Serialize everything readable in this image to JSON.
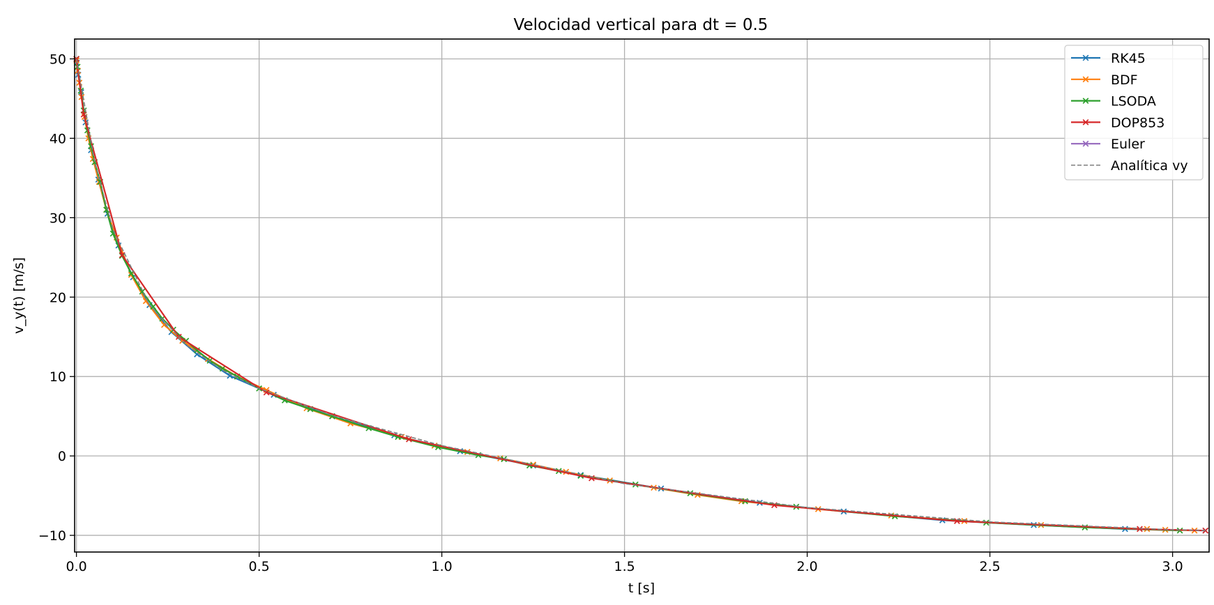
{
  "chart_data": {
    "type": "line",
    "title": "Velocidad vertical para dt = 0.5",
    "xlabel": "t [s]",
    "ylabel": "v_y(t) [m/s]",
    "xlim": [
      -0.005,
      3.1
    ],
    "ylim": [
      -12.1,
      52.5
    ],
    "xticks": [
      0.0,
      0.5,
      1.0,
      1.5,
      2.0,
      2.5,
      3.0
    ],
    "xtick_labels": [
      "0.0",
      "0.5",
      "1.0",
      "1.5",
      "2.0",
      "2.5",
      "3.0"
    ],
    "yticks": [
      -10,
      0,
      10,
      20,
      30,
      40,
      50
    ],
    "ytick_labels": [
      "−10",
      "0",
      "10",
      "20",
      "30",
      "40",
      "50"
    ],
    "grid": true,
    "legend_position": "upper-right",
    "series": [
      {
        "name": "RK45",
        "color": "#1f77b4",
        "marker": "x",
        "style": "solid",
        "x": [
          0.0,
          0.001,
          0.005,
          0.013,
          0.025,
          0.04,
          0.06,
          0.085,
          0.115,
          0.155,
          0.2,
          0.26,
          0.33,
          0.42,
          0.54,
          0.7,
          0.87,
          1.05,
          1.25,
          1.38,
          1.6,
          1.87,
          2.1,
          2.37,
          2.62,
          2.87,
          3.09
        ],
        "y": [
          50.0,
          49.5,
          48.0,
          45.8,
          42.0,
          38.5,
          34.8,
          30.5,
          26.5,
          22.5,
          19.0,
          15.6,
          12.8,
          10.1,
          7.7,
          5.0,
          2.6,
          0.6,
          -1.2,
          -2.4,
          -4.1,
          -5.9,
          -7.0,
          -8.1,
          -8.7,
          -9.2,
          -9.4
        ]
      },
      {
        "name": "BDF",
        "color": "#ff7f0e",
        "marker": "x",
        "style": "solid",
        "x": [
          0.0,
          0.004,
          0.008,
          0.014,
          0.022,
          0.033,
          0.045,
          0.062,
          0.082,
          0.11,
          0.15,
          0.19,
          0.24,
          0.29,
          0.36,
          0.44,
          0.52,
          0.63,
          0.75,
          0.89,
          0.98,
          1.07,
          1.16,
          1.25,
          1.34,
          1.46,
          1.58,
          1.7,
          1.82,
          2.03,
          2.23,
          2.43,
          2.64,
          2.93,
          2.98,
          3.06
        ],
        "y": [
          49.8,
          48.5,
          47.0,
          45.2,
          42.7,
          40.0,
          37.4,
          34.5,
          31.0,
          27.5,
          22.8,
          19.5,
          16.5,
          14.5,
          12.2,
          10.0,
          8.3,
          6.0,
          4.1,
          2.4,
          1.3,
          0.5,
          -0.3,
          -1.1,
          -2.0,
          -3.1,
          -4.0,
          -4.9,
          -5.7,
          -6.7,
          -7.5,
          -8.2,
          -8.7,
          -9.2,
          -9.3,
          -9.4
        ]
      },
      {
        "name": "LSODA",
        "color": "#2ca02c",
        "marker": "x",
        "style": "solid",
        "x": [
          0.0,
          0.003,
          0.012,
          0.02,
          0.03,
          0.04,
          0.05,
          0.065,
          0.082,
          0.1,
          0.125,
          0.15,
          0.18,
          0.21,
          0.235,
          0.265,
          0.3,
          0.33,
          0.365,
          0.4,
          0.44,
          0.5,
          0.57,
          0.64,
          0.7,
          0.8,
          0.88,
          0.99,
          1.1,
          1.17,
          1.24,
          1.32,
          1.38,
          1.53,
          1.68,
          1.83,
          1.97,
          2.24,
          2.49,
          2.76,
          3.02
        ],
        "y": [
          50.0,
          49.0,
          46.0,
          43.5,
          41.0,
          39.0,
          37.0,
          34.5,
          31.0,
          28.0,
          25.2,
          23.0,
          20.7,
          18.8,
          17.3,
          15.9,
          14.5,
          13.3,
          12.0,
          11.0,
          10.0,
          8.5,
          7.0,
          5.9,
          5.0,
          3.5,
          2.4,
          1.1,
          0.1,
          -0.4,
          -1.2,
          -1.9,
          -2.5,
          -3.6,
          -4.7,
          -5.7,
          -6.4,
          -7.6,
          -8.4,
          -9.0,
          -9.4
        ]
      },
      {
        "name": "DOP853",
        "color": "#d62728",
        "marker": "x",
        "style": "solid",
        "x": [
          0.0,
          0.02,
          0.125,
          0.28,
          0.52,
          0.91,
          1.41,
          1.91,
          2.41,
          2.91,
          3.09
        ],
        "y": [
          50.0,
          43.0,
          25.3,
          15.0,
          8.0,
          2.1,
          -2.8,
          -6.2,
          -8.2,
          -9.2,
          -9.4
        ]
      },
      {
        "name": "Euler",
        "color": "#9467bd",
        "marker": "x",
        "style": "solid",
        "x": [],
        "y": []
      },
      {
        "name": "Analítica vy",
        "color": "#7f7f7f",
        "marker": "none",
        "style": "dashed",
        "x": [
          0.0,
          0.05,
          0.1,
          0.2,
          0.3,
          0.4,
          0.5,
          0.7,
          1.0,
          1.5,
          2.0,
          2.5,
          3.0,
          3.09
        ],
        "y": [
          50.0,
          37.0,
          28.5,
          19.0,
          14.0,
          10.8,
          8.5,
          5.1,
          1.3,
          -3.5,
          -6.5,
          -8.3,
          -9.3,
          -9.4
        ]
      }
    ]
  }
}
